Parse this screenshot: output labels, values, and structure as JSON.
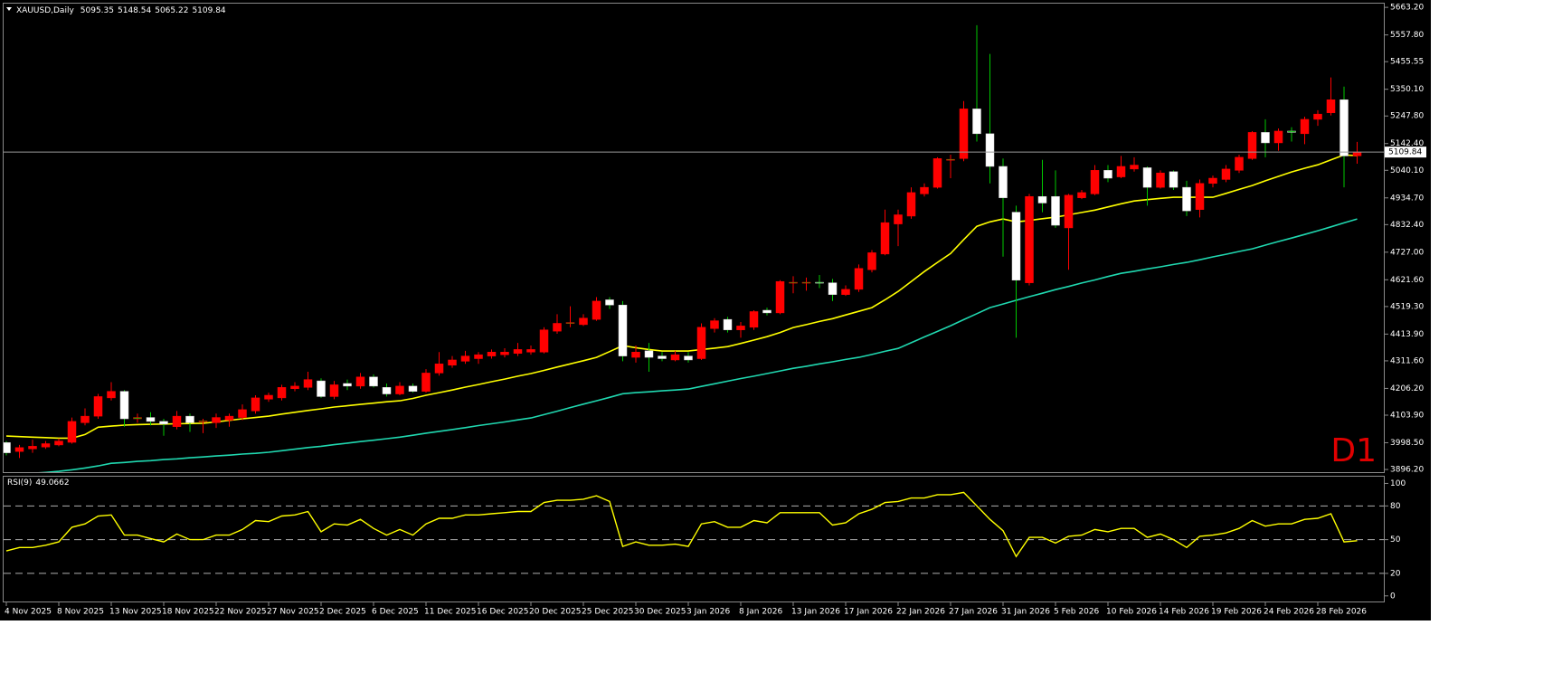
{
  "chart_data": {
    "type": "candlestick",
    "symbol": "XAUUSD,Daily",
    "timeframe_label": "D1",
    "up_color": "#ff0000",
    "down_color": "#ffffff",
    "wick_down_color": "#00c800",
    "categories": [
      "4 Nov 2025",
      null,
      null,
      null,
      "8 Nov 2025",
      null,
      null,
      null,
      "13 Nov 2025",
      null,
      null,
      null,
      "18 Nov 2025",
      null,
      null,
      null,
      "22 Nov 2025",
      null,
      null,
      null,
      "27 Nov 2025",
      null,
      null,
      null,
      "2 Dec 2025",
      null,
      null,
      null,
      "6 Dec 2025",
      null,
      null,
      null,
      "11 Dec 2025",
      null,
      null,
      null,
      "16 Dec 2025",
      null,
      null,
      null,
      "20 Dec 2025",
      null,
      null,
      null,
      "25 Dec 2025",
      null,
      null,
      null,
      "30 Dec 2025",
      null,
      null,
      null,
      "3 Jan 2026",
      null,
      null,
      null,
      "8 Jan 2026",
      null,
      null,
      null,
      "13 Jan 2026",
      null,
      null,
      null,
      "17 Jan 2026",
      null,
      null,
      null,
      "22 Jan 2026",
      null,
      null,
      null,
      "27 Jan 2026",
      null,
      null,
      null,
      "31 Jan 2026",
      null,
      null,
      null,
      "5 Feb 2026",
      null,
      null,
      null,
      "10 Feb 2026",
      null,
      null,
      null,
      "14 Feb 2026",
      null,
      null,
      null,
      "19 Feb 2026",
      null,
      null,
      null,
      "24 Feb 2026",
      null,
      null,
      null,
      "28 Feb 2026",
      null,
      null,
      null
    ],
    "open": [
      3999,
      3965,
      3975,
      3982,
      3990,
      4000,
      4075,
      4100,
      4170,
      4195,
      4090,
      4095,
      4080,
      4060,
      4100,
      4080,
      4075,
      4085,
      4095,
      4120,
      4165,
      4170,
      4205,
      4210,
      4235,
      4175,
      4225,
      4215,
      4250,
      4210,
      4185,
      4215,
      4195,
      4265,
      4295,
      4310,
      4320,
      4330,
      4335,
      4340,
      4345,
      4345,
      4425,
      4455,
      4450,
      4470,
      4545,
      4525,
      4325,
      4350,
      4330,
      4315,
      4330,
      4320,
      4435,
      4470,
      4430,
      4440,
      4505,
      4495,
      4610,
      4610,
      4612,
      4610,
      4565,
      4585,
      4660,
      4720,
      4835,
      4865,
      4950,
      4975,
      5080,
      5085,
      5275,
      5180,
      5055,
      4880,
      4610,
      4940,
      4940,
      4820,
      4935,
      4950,
      5040,
      5015,
      5045,
      5050,
      4975,
      5035,
      4975,
      4890,
      4990,
      5005,
      5040,
      5085,
      5185,
      5145,
      5190,
      5180,
      5235,
      5260,
      5310,
      5095.35
    ],
    "high": [
      4005,
      3990,
      4010,
      4005,
      4015,
      4095,
      4130,
      4185,
      4230,
      4200,
      4110,
      4115,
      4090,
      4120,
      4110,
      4090,
      4110,
      4110,
      4145,
      4180,
      4190,
      4220,
      4230,
      4270,
      4245,
      4235,
      4240,
      4265,
      4260,
      4225,
      4230,
      4225,
      4280,
      4345,
      4330,
      4350,
      4345,
      4355,
      4360,
      4380,
      4370,
      4440,
      4490,
      4520,
      4490,
      4555,
      4555,
      4540,
      4370,
      4380,
      4345,
      4350,
      4345,
      4455,
      4475,
      4480,
      4460,
      4505,
      4515,
      4620,
      4635,
      4630,
      4640,
      4625,
      4600,
      4680,
      4735,
      4890,
      4890,
      4975,
      4990,
      5090,
      5100,
      5305,
      5595,
      5485,
      5085,
      4905,
      4950,
      5080,
      5040,
      4950,
      4965,
      5060,
      5060,
      5095,
      5090,
      5055,
      5040,
      5040,
      5000,
      5005,
      5020,
      5060,
      5100,
      5190,
      5235,
      5200,
      5205,
      5245,
      5270,
      5395,
      5360,
      5148.54
    ],
    "low": [
      3950,
      3940,
      3960,
      3975,
      3985,
      3995,
      4065,
      4090,
      4160,
      4060,
      4075,
      4065,
      4025,
      4050,
      4040,
      4035,
      4055,
      4060,
      4085,
      4110,
      4155,
      4160,
      4195,
      4200,
      4170,
      4165,
      4200,
      4205,
      4210,
      4175,
      4180,
      4190,
      4190,
      4255,
      4285,
      4300,
      4300,
      4320,
      4325,
      4330,
      4335,
      4340,
      4415,
      4440,
      4445,
      4465,
      4510,
      4310,
      4305,
      4270,
      4310,
      4310,
      4305,
      4315,
      4420,
      4420,
      4400,
      4430,
      4485,
      4490,
      4570,
      4580,
      4590,
      4540,
      4560,
      4575,
      4650,
      4715,
      4750,
      4855,
      4940,
      4970,
      5010,
      5075,
      5150,
      4990,
      4710,
      4400,
      4600,
      4880,
      4820,
      4660,
      4930,
      4945,
      4995,
      5010,
      5035,
      4905,
      4970,
      4965,
      4865,
      4860,
      4975,
      4995,
      5030,
      5080,
      5090,
      5115,
      5150,
      5140,
      5210,
      5250,
      4975,
      5065.22
    ],
    "close": [
      3960,
      3980,
      3985,
      3995,
      4005,
      4080,
      4100,
      4175,
      4195,
      4090,
      4095,
      4080,
      4070,
      4100,
      4075,
      4082,
      4095,
      4100,
      4125,
      4170,
      4180,
      4210,
      4215,
      4240,
      4175,
      4220,
      4215,
      4250,
      4215,
      4185,
      4215,
      4195,
      4265,
      4300,
      4315,
      4330,
      4335,
      4345,
      4345,
      4355,
      4355,
      4430,
      4455,
      4458,
      4475,
      4540,
      4525,
      4330,
      4345,
      4325,
      4320,
      4335,
      4315,
      4440,
      4465,
      4430,
      4445,
      4500,
      4495,
      4615,
      4612,
      4612,
      4610,
      4565,
      4585,
      4665,
      4725,
      4840,
      4870,
      4955,
      4975,
      5085,
      5082,
      5275,
      5180,
      5055,
      4935,
      4620,
      4940,
      4915,
      4830,
      4945,
      4955,
      5040,
      5010,
      5055,
      5060,
      4975,
      5030,
      4975,
      4885,
      4990,
      5010,
      5045,
      5090,
      5185,
      5145,
      5190,
      5185,
      5235,
      5255,
      5310,
      5095,
      5109.84
    ],
    "overlays": [
      {
        "color": "#ffff00",
        "values": [
          4024,
          4022,
          4020,
          4018,
          4016,
          4016,
          4030,
          4058,
          4062,
          4066,
          4068,
          4069,
          4070,
          4071,
          4072,
          4073,
          4078,
          4084,
          4090,
          4095,
          4100,
          4108,
          4115,
          4122,
          4128,
          4135,
          4140,
          4145,
          4150,
          4155,
          4159,
          4168,
          4180,
          4190,
          4200,
          4211,
          4221,
          4232,
          4242,
          4253,
          4263,
          4275,
          4288,
          4300,
          4312,
          4325,
          4347,
          4370,
          4362,
          4355,
          4349,
          4349,
          4349,
          4355,
          4360,
          4366,
          4378,
          4391,
          4404,
          4420,
          4439,
          4450,
          4462,
          4473,
          4487,
          4501,
          4515,
          4545,
          4577,
          4615,
          4653,
          4688,
          4722,
          4775,
          4826,
          4843,
          4854,
          4843,
          4848,
          4855,
          4861,
          4870,
          4879,
          4888,
          4900,
          4912,
          4923,
          4928,
          4933,
          4937,
          4937,
          4937,
          4937,
          4952,
          4967,
          4982,
          5000,
          5017,
          5034,
          5048,
          5061,
          5080,
          5099,
          5096
        ]
      },
      {
        "color": "#20d8b0",
        "values": [
          3876,
          3879,
          3882,
          3885,
          3889,
          3895,
          3902,
          3910,
          3920,
          3923,
          3927,
          3930,
          3934,
          3937,
          3941,
          3944,
          3948,
          3951,
          3955,
          3958,
          3962,
          3968,
          3974,
          3980,
          3985,
          3991,
          3997,
          4003,
          4008,
          4014,
          4020,
          4027,
          4035,
          4042,
          4049,
          4056,
          4064,
          4071,
          4078,
          4086,
          4093,
          4106,
          4119,
          4133,
          4146,
          4159,
          4172,
          4186,
          4190,
          4193,
          4197,
          4200,
          4204,
          4214,
          4224,
          4234,
          4244,
          4253,
          4263,
          4273,
          4283,
          4291,
          4300,
          4308,
          4317,
          4325,
          4336,
          4348,
          4359,
          4381,
          4403,
          4424,
          4446,
          4469,
          4492,
          4515,
          4529,
          4543,
          4557,
          4570,
          4584,
          4596,
          4609,
          4621,
          4634,
          4646,
          4654,
          4663,
          4671,
          4680,
          4688,
          4698,
          4709,
          4719,
          4730,
          4740,
          4754,
          4768,
          4781,
          4795,
          4809,
          4824,
          4839,
          4854
        ]
      }
    ],
    "ylim": [
      3886,
      5674
    ],
    "yticks": [
      {
        "value": 5663.2,
        "label": "5663.20"
      },
      {
        "value": 5557.8,
        "label": "5557.80"
      },
      {
        "value": 5455.55,
        "label": "5455.55"
      },
      {
        "value": 5350.1,
        "label": "5350.10"
      },
      {
        "value": 5247.8,
        "label": "5247.80"
      },
      {
        "value": 5142.4,
        "label": "5142.40"
      },
      {
        "value": 5040.1,
        "label": "5040.10"
      },
      {
        "value": 4934.7,
        "label": "4934.70"
      },
      {
        "value": 4832.4,
        "label": "4832.40"
      },
      {
        "value": 4727,
        "label": "4727.00"
      },
      {
        "value": 4621.6,
        "label": "4621.60"
      },
      {
        "value": 4519.3,
        "label": "4519.30"
      },
      {
        "value": 4413.9,
        "label": "4413.90"
      },
      {
        "value": 4311.6,
        "label": "4311.60"
      },
      {
        "value": 4206.2,
        "label": "4206.20"
      },
      {
        "value": 4103.9,
        "label": "4103.90"
      },
      {
        "value": 3998.5,
        "label": "3998.50"
      },
      {
        "value": 3896.2,
        "label": "3896.20"
      }
    ],
    "indicator": {
      "title": "RSI(9)",
      "color": "#ffff00",
      "values": [
        40,
        43,
        43,
        45,
        48,
        61,
        64,
        71,
        72,
        54,
        54,
        51,
        48,
        55,
        50,
        50,
        54,
        54,
        59,
        67,
        66,
        71,
        72,
        75,
        57,
        64,
        63,
        68,
        60,
        54,
        59,
        54,
        64,
        69,
        69,
        72,
        72,
        73,
        74,
        75,
        75,
        83,
        85,
        85,
        86,
        89,
        84,
        44,
        48,
        45,
        45,
        46,
        44,
        64,
        66,
        61,
        61,
        67,
        65,
        74,
        74,
        74,
        74,
        63,
        65,
        73,
        77,
        83,
        84,
        87,
        87,
        90,
        90,
        92,
        80,
        68,
        58,
        35,
        52,
        52,
        47,
        53,
        54,
        59,
        57,
        60,
        60,
        52,
        55,
        50,
        43,
        53,
        54,
        56,
        60,
        67,
        62,
        64,
        64,
        68,
        69,
        73,
        48,
        49.0662
      ],
      "ylim": [
        -5,
        106
      ],
      "yticks": [
        0,
        20,
        50,
        80,
        100
      ],
      "levels": [
        20,
        50,
        80
      ]
    }
  }
}
